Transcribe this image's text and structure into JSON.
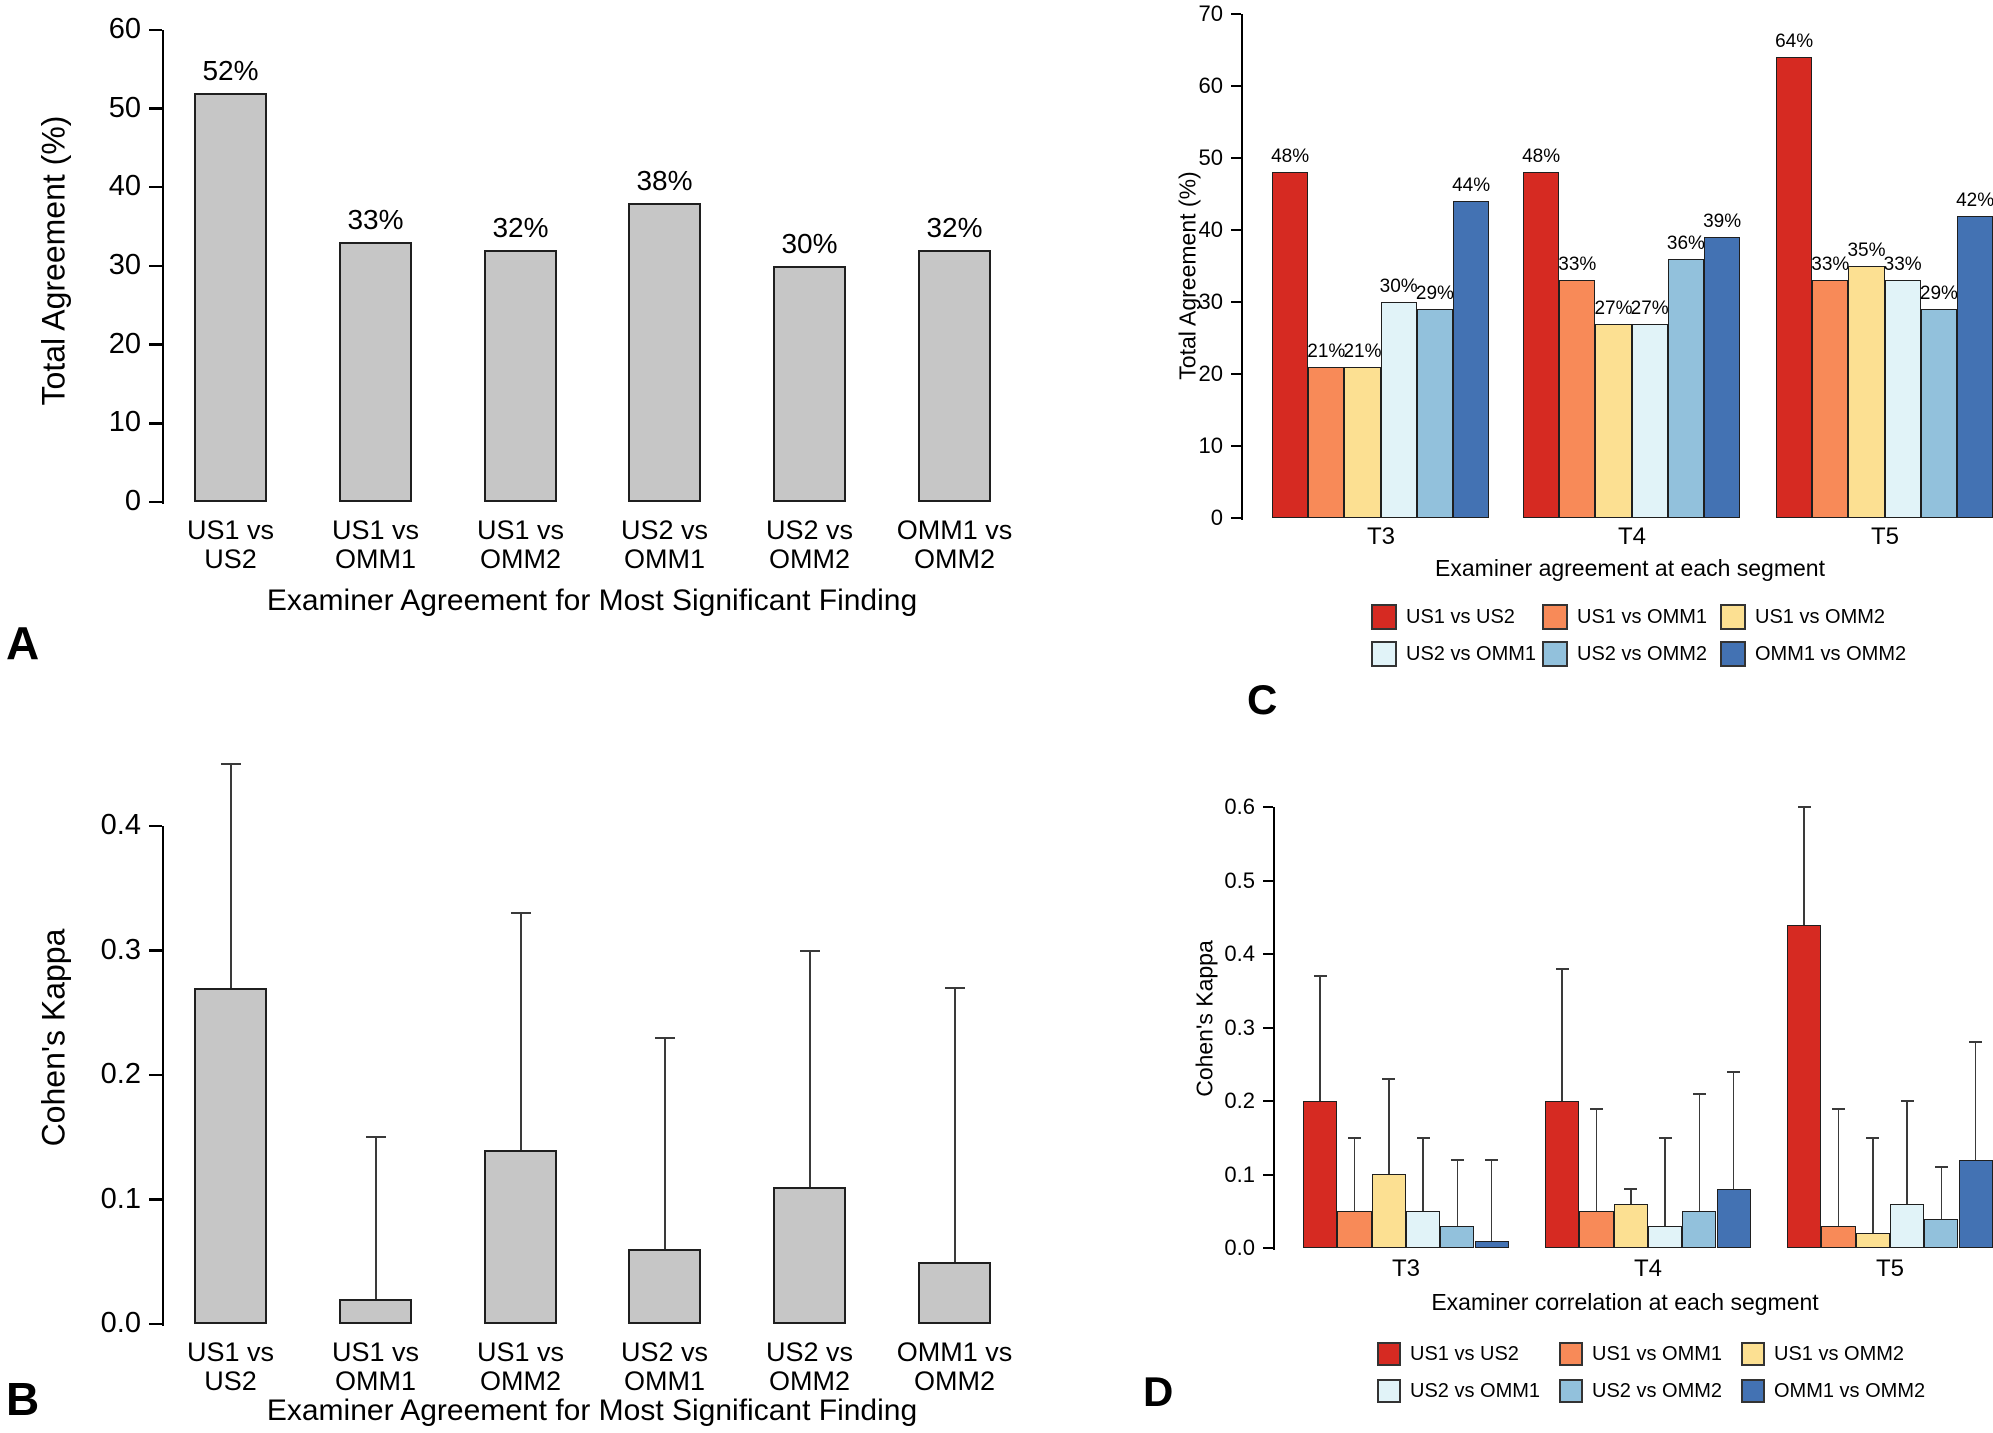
{
  "figure": {
    "background": "#ffffff",
    "panel_letters": [
      "A",
      "B",
      "C",
      "D"
    ]
  },
  "chart_data": [
    {
      "panel_letter": "A",
      "type": "bar",
      "title": "",
      "ylabel": "Total Agreement (%)",
      "xlabel": "Examiner Agreement for Most Significant Finding",
      "categories": [
        "US1 vs\nUS2",
        "US1 vs\nOMM1",
        "US1 vs\nOMM2",
        "US2 vs\nOMM1",
        "US2 vs\nOMM2",
        "OMM1 vs\nOMM2"
      ],
      "values": [
        52,
        33,
        32,
        38,
        30,
        32
      ],
      "bar_labels": [
        "52%",
        "33%",
        "32%",
        "38%",
        "30%",
        "32%"
      ],
      "bar_color": "#c6c6c6",
      "bar_border_color": "#333333",
      "ylim": [
        0,
        60
      ],
      "ytick_values": [
        0,
        10,
        20,
        30,
        40,
        50,
        60
      ],
      "ytick_labels": [
        "0",
        "10",
        "20",
        "30",
        "40",
        "50",
        "60"
      ],
      "grid": false
    },
    {
      "panel_letter": "B",
      "type": "bar",
      "title": "",
      "ylabel": "Cohen's Kappa",
      "xlabel": "Examiner Agreement for Most Significant Finding",
      "categories": [
        "US1 vs\nUS2",
        "US1 vs\nOMM1",
        "US1 vs\nOMM2",
        "US2 vs\nOMM1",
        "US2 vs\nOMM2",
        "OMM1 vs\nOMM2"
      ],
      "values": [
        0.27,
        0.02,
        0.14,
        0.06,
        0.11,
        0.05
      ],
      "errors_upper": [
        0.45,
        0.15,
        0.33,
        0.23,
        0.3,
        0.27
      ],
      "bar_color": "#c6c6c6",
      "bar_border_color": "#333333",
      "ylim": [
        0,
        0.45
      ],
      "ytick_values": [
        0,
        0.1,
        0.2,
        0.3,
        0.4
      ],
      "ytick_labels": [
        "0.0",
        "0.1",
        "0.2",
        "0.3",
        "0.4"
      ],
      "grid": false
    },
    {
      "panel_letter": "C",
      "type": "grouped-bar",
      "title": "",
      "ylabel": "Total Agreement (%)",
      "xlabel": "Examiner agreement at each segment",
      "categories": [
        "T3",
        "T4",
        "T5"
      ],
      "series": [
        {
          "name": "US1 vs US2",
          "color": "#d62a22",
          "values": [
            48,
            48,
            64
          ]
        },
        {
          "name": "US1 vs OMM1",
          "color": "#f88a58",
          "values": [
            21,
            33,
            33
          ]
        },
        {
          "name": "US1 vs OMM2",
          "color": "#fce092",
          "values": [
            21,
            27,
            35
          ]
        },
        {
          "name": "US2 vs OMM1",
          "color": "#e1f3f8",
          "values": [
            30,
            27,
            33
          ]
        },
        {
          "name": "US2 vs OMM2",
          "color": "#92c1dc",
          "values": [
            29,
            36,
            29
          ]
        },
        {
          "name": "OMM1 vs OMM2",
          "color": "#4372b3",
          "values": [
            44,
            39,
            42
          ]
        }
      ],
      "show_bar_labels": true,
      "bar_label_suffix": "%",
      "ylim": [
        0,
        70
      ],
      "ytick_values": [
        0,
        10,
        20,
        30,
        40,
        50,
        60,
        70
      ],
      "ytick_labels": [
        "0",
        "10",
        "20",
        "30",
        "40",
        "50",
        "60",
        "70"
      ],
      "legend_position": "bottom",
      "grid": false
    },
    {
      "panel_letter": "D",
      "type": "grouped-bar",
      "title": "",
      "ylabel": "Cohen's Kappa",
      "xlabel": "Examiner correlation at each segment",
      "categories": [
        "T3",
        "T4",
        "T5"
      ],
      "series": [
        {
          "name": "US1 vs US2",
          "color": "#d62a22",
          "values": [
            0.2,
            0.2,
            0.44
          ],
          "errors_upper": [
            0.37,
            0.38,
            0.6
          ]
        },
        {
          "name": "US1 vs OMM1",
          "color": "#f88a58",
          "values": [
            0.05,
            0.05,
            0.03
          ],
          "errors_upper": [
            0.15,
            0.19,
            0.19
          ]
        },
        {
          "name": "US1 vs OMM2",
          "color": "#fce092",
          "values": [
            0.1,
            0.06,
            0.02
          ],
          "errors_upper": [
            0.23,
            0.08,
            0.15
          ]
        },
        {
          "name": "US2 vs OMM1",
          "color": "#e1f3f8",
          "values": [
            0.05,
            0.03,
            0.06
          ],
          "errors_upper": [
            0.15,
            0.15,
            0.2
          ]
        },
        {
          "name": "US2 vs OMM2",
          "color": "#92c1dc",
          "values": [
            0.03,
            0.05,
            0.04
          ],
          "errors_upper": [
            0.12,
            0.21,
            0.11
          ]
        },
        {
          "name": "OMM1 vs OMM2",
          "color": "#4372b3",
          "values": [
            0.01,
            0.08,
            0.12
          ],
          "errors_upper": [
            0.12,
            0.24,
            0.28
          ]
        }
      ],
      "show_bar_labels": false,
      "ylim": [
        0,
        0.6
      ],
      "ytick_values": [
        0,
        0.1,
        0.2,
        0.3,
        0.4,
        0.5,
        0.6
      ],
      "ytick_labels": [
        "0.0",
        "0.1",
        "0.2",
        "0.3",
        "0.4",
        "0.5",
        "0.6"
      ],
      "legend_position": "bottom",
      "grid": false
    }
  ]
}
